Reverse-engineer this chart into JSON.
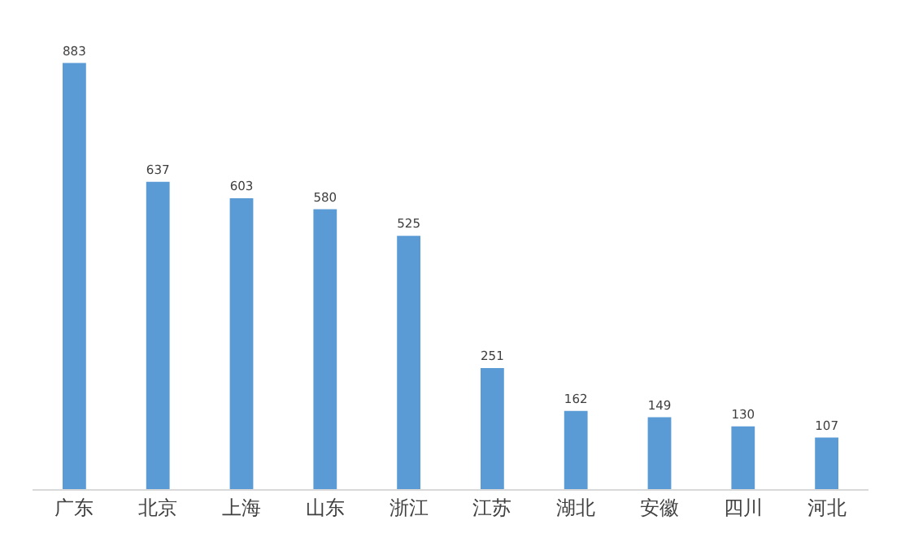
{
  "chart_data": {
    "type": "bar",
    "categories": [
      "广东",
      "北京",
      "上海",
      "山东",
      "浙江",
      "江苏",
      "湖北",
      "安徽",
      "四川",
      "河北"
    ],
    "values": [
      883,
      637,
      603,
      580,
      525,
      251,
      162,
      149,
      130,
      107
    ],
    "color": "#5b9bd5",
    "data_labels": true
  }
}
